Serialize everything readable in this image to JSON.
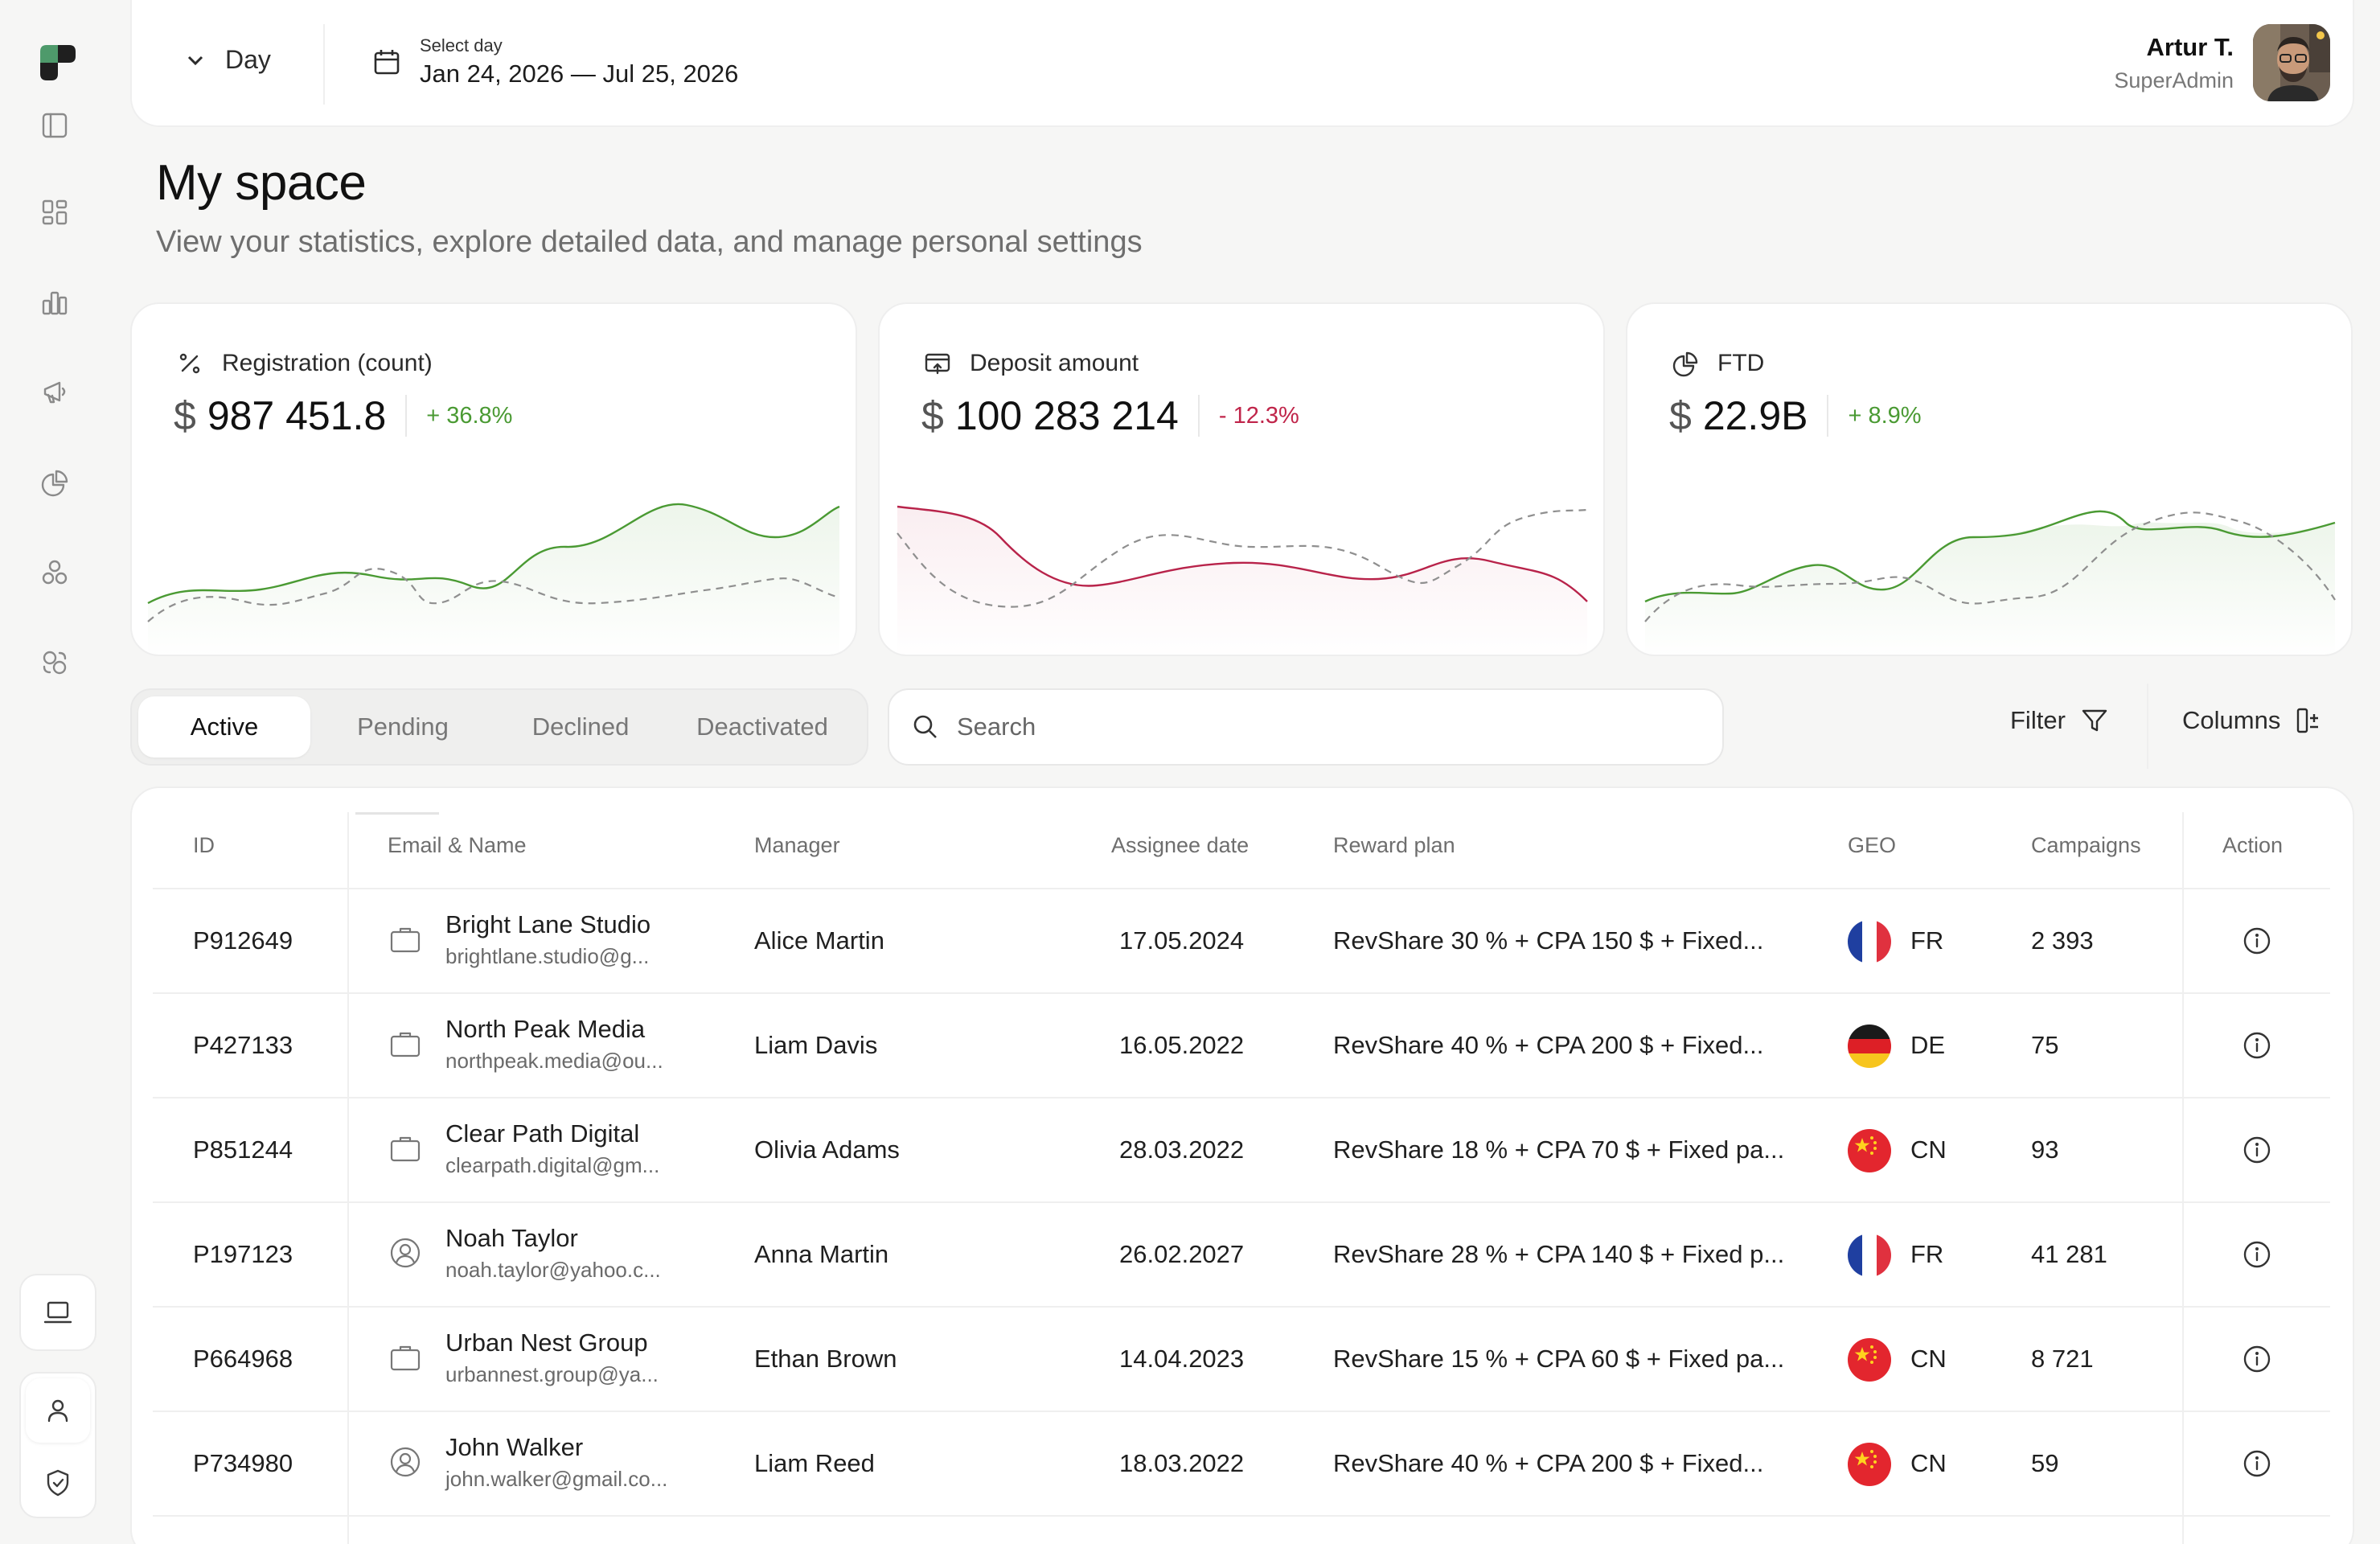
{
  "header": {
    "period_label": "Day",
    "date_caption": "Select day",
    "date_range": "Jan 24, 2026 — Jul 25, 2026",
    "user_name": "Artur T.",
    "user_role": "SuperAdmin"
  },
  "page": {
    "title": "My space",
    "subtitle": "View your statistics, explore detailed data, and manage personal settings"
  },
  "kpis": [
    {
      "label": "Registration (count)",
      "icon": "percent-icon",
      "currency": "$",
      "value": "987 451.8",
      "change": "+ 36.8%",
      "trend": "up"
    },
    {
      "label": "Deposit amount",
      "icon": "deposit-icon",
      "currency": "$",
      "value": "100 283 214",
      "change": "- 12.3%",
      "trend": "down"
    },
    {
      "label": "FTD",
      "icon": "pie-chart-icon",
      "currency": "$",
      "value": "22.9B",
      "change": "+ 8.9%",
      "trend": "up"
    }
  ],
  "colors": {
    "positive": "#4a9a33",
    "negative": "#c0254a",
    "accent": "#4e9a6b"
  },
  "tabs": [
    "Active",
    "Pending",
    "Declined",
    "Deactivated"
  ],
  "active_tab": "Active",
  "search": {
    "placeholder": "Search"
  },
  "toolbar": {
    "filter_label": "Filter",
    "columns_label": "Columns"
  },
  "table": {
    "columns": [
      "ID",
      "Email & Name",
      "Manager",
      "Assignee date",
      "Reward plan",
      "GEO",
      "Campaigns",
      "Action"
    ],
    "rows": [
      {
        "id": "P912649",
        "type": "company",
        "name": "Bright Lane Studio",
        "email": "brightlane.studio@g...",
        "manager": "Alice Martin",
        "date": "17.05.2024",
        "plan": "RevShare 30 % + CPA 150 $ + Fixed...",
        "geo": "FR",
        "campaigns": "2 393"
      },
      {
        "id": "P427133",
        "type": "company",
        "name": "North Peak Media",
        "email": "northpeak.media@ou...",
        "manager": "Liam Davis",
        "date": "16.05.2022",
        "plan": "RevShare 40 % + CPA 200 $ + Fixed...",
        "geo": "DE",
        "campaigns": "75"
      },
      {
        "id": "P851244",
        "type": "company",
        "name": "Clear Path Digital",
        "email": "clearpath.digital@gm...",
        "manager": "Olivia Adams",
        "date": "28.03.2022",
        "plan": "RevShare 18 % + CPA 70 $ + Fixed pa...",
        "geo": "CN",
        "campaigns": "93"
      },
      {
        "id": "P197123",
        "type": "person",
        "name": "Noah Taylor",
        "email": "noah.taylor@yahoo.c...",
        "manager": "Anna Martin",
        "date": "26.02.2027",
        "plan": "RevShare 28 % + CPA 140 $ + Fixed p...",
        "geo": "FR",
        "campaigns": "41 281"
      },
      {
        "id": "P664968",
        "type": "company",
        "name": "Urban Nest Group",
        "email": "urbannest.group@ya...",
        "manager": "Ethan Brown",
        "date": "14.04.2023",
        "plan": "RevShare 15 % + CPA 60 $ + Fixed pa...",
        "geo": "CN",
        "campaigns": "8 721"
      },
      {
        "id": "P734980",
        "type": "person",
        "name": "John Walker",
        "email": "john.walker@gmail.co...",
        "manager": "Liam Reed",
        "date": "18.03.2022",
        "plan": "RevShare 40 % + CPA 200 $ + Fixed...",
        "geo": "CN",
        "campaigns": "59"
      }
    ]
  }
}
